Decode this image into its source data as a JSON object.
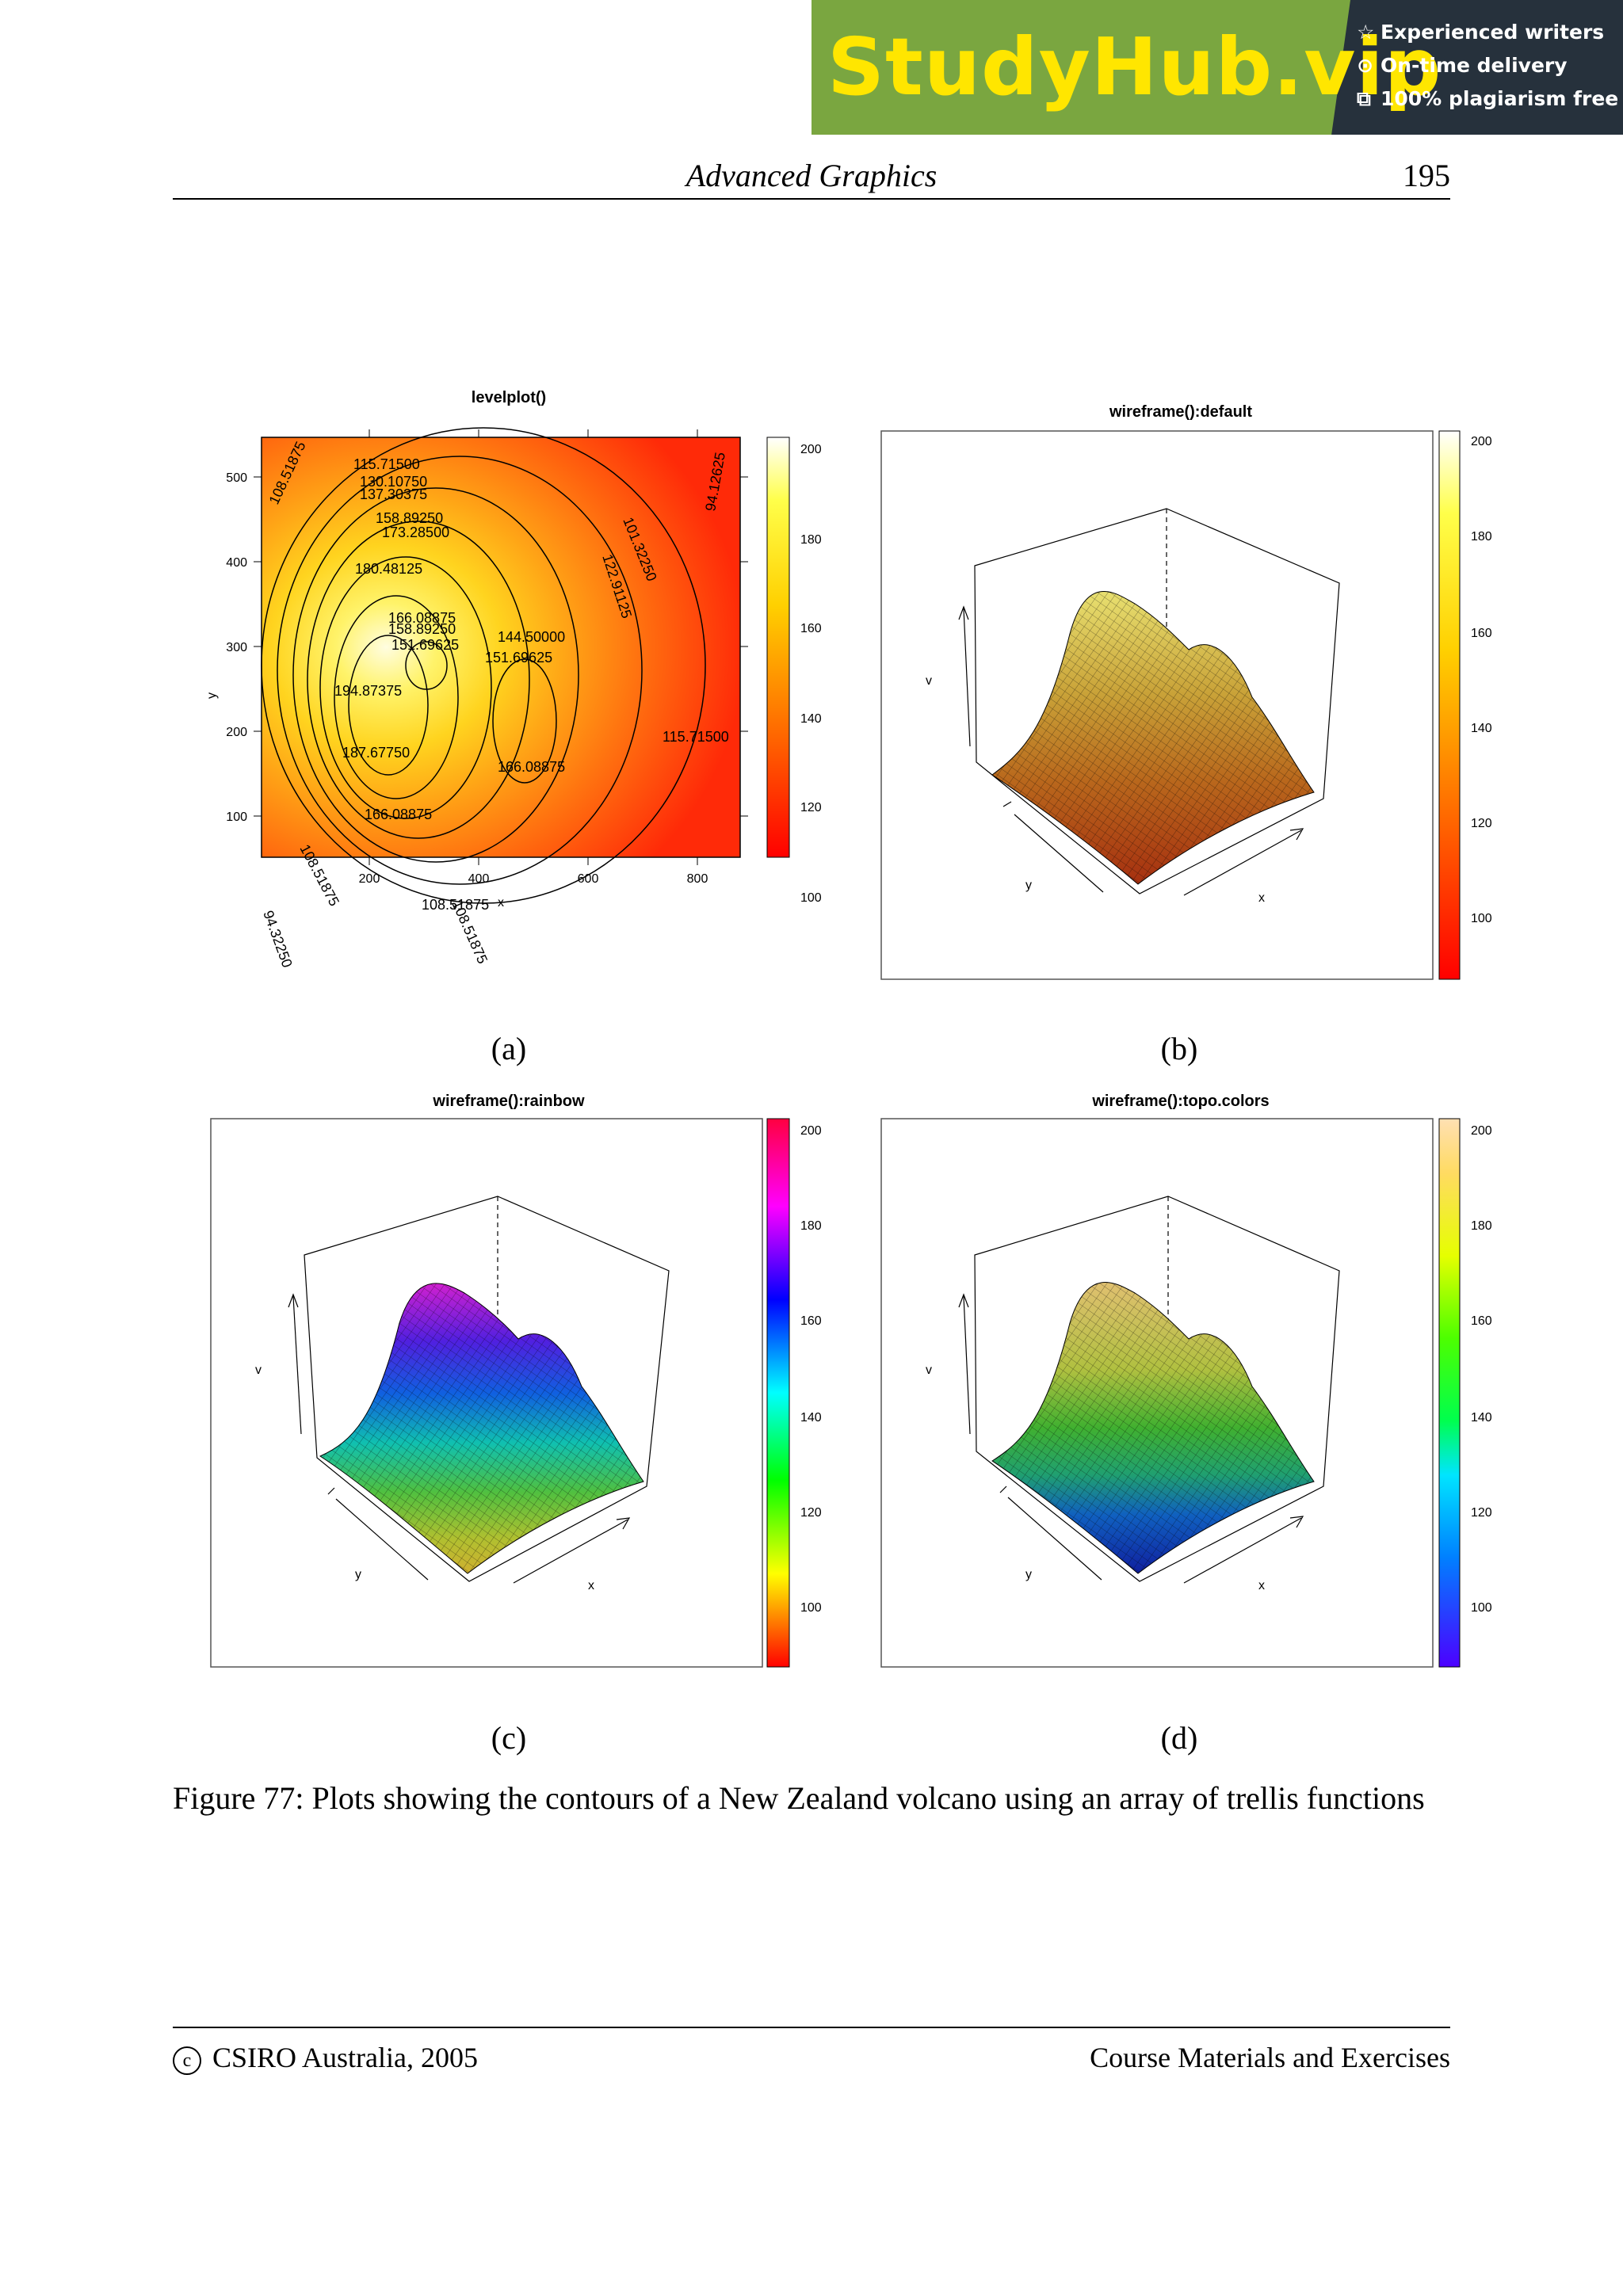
{
  "banner": {
    "brand": "StudyHub.vip",
    "features": [
      "Experienced writers",
      "On-time delivery",
      "100% plagiarism free"
    ],
    "feature_icons": [
      "star-icon",
      "clock-icon",
      "copy-icon"
    ]
  },
  "header": {
    "title": "Advanced Graphics",
    "page_number": "195"
  },
  "figure": {
    "panels": [
      {
        "id": "a",
        "label": "(a)",
        "title": "levelplot()",
        "colorkey": [
          "200",
          "180",
          "160",
          "140",
          "120",
          "100"
        ]
      },
      {
        "id": "b",
        "label": "(b)",
        "title": "wireframe():default",
        "colorkey": [
          "200",
          "180",
          "160",
          "140",
          "120",
          "100"
        ]
      },
      {
        "id": "c",
        "label": "(c)",
        "title": "wireframe():rainbow",
        "colorkey": [
          "200",
          "180",
          "160",
          "140",
          "120",
          "100"
        ]
      },
      {
        "id": "d",
        "label": "(d)",
        "title": "wireframe():topo.colors",
        "colorkey": [
          "200",
          "180",
          "160",
          "140",
          "120",
          "100"
        ]
      }
    ],
    "caption": "Figure 77: Plots showing the contours of a New Zealand volcano using an array of trellis functions"
  },
  "chart_data": [
    {
      "type": "heatmap",
      "title": "levelplot()",
      "xlabel": "x",
      "ylabel": "y",
      "xticks": [
        "200",
        "400",
        "600",
        "800"
      ],
      "yticks": [
        "100",
        "200",
        "300",
        "400",
        "500"
      ],
      "contour_labels": [
        "115.71500",
        "130.10750",
        "137.30375",
        "158.89250",
        "173.28500",
        "180.48125",
        "166.08875",
        "158.89250",
        "151.69625",
        "144.50000",
        "151.69625",
        "194.87375",
        "187.67750",
        "166.08875",
        "166.08875",
        "108.51875",
        "115.71500",
        "108.51875",
        "108.51875",
        "101.32250",
        "122.91125",
        "94.12625",
        "108.51875",
        "94.32250"
      ],
      "colorkey": [
        "200",
        "180",
        "160",
        "140",
        "120",
        "100"
      ]
    },
    {
      "type": "surface",
      "title": "wireframe():default",
      "axis_labels": [
        "v",
        "y",
        "x"
      ],
      "colorkey": [
        "200",
        "180",
        "160",
        "140",
        "120",
        "100"
      ]
    },
    {
      "type": "surface",
      "title": "wireframe():rainbow",
      "axis_labels": [
        "v",
        "y",
        "x"
      ],
      "colorkey": [
        "200",
        "180",
        "160",
        "140",
        "120",
        "100"
      ]
    },
    {
      "type": "surface",
      "title": "wireframe():topo.colors",
      "axis_labels": [
        "v",
        "y",
        "x"
      ],
      "colorkey": [
        "200",
        "180",
        "160",
        "140",
        "120",
        "100"
      ]
    }
  ],
  "footer": {
    "copyright": "CSIRO Australia, 2005",
    "copyright_symbol": "c",
    "right": "Course Materials and Exercises"
  }
}
